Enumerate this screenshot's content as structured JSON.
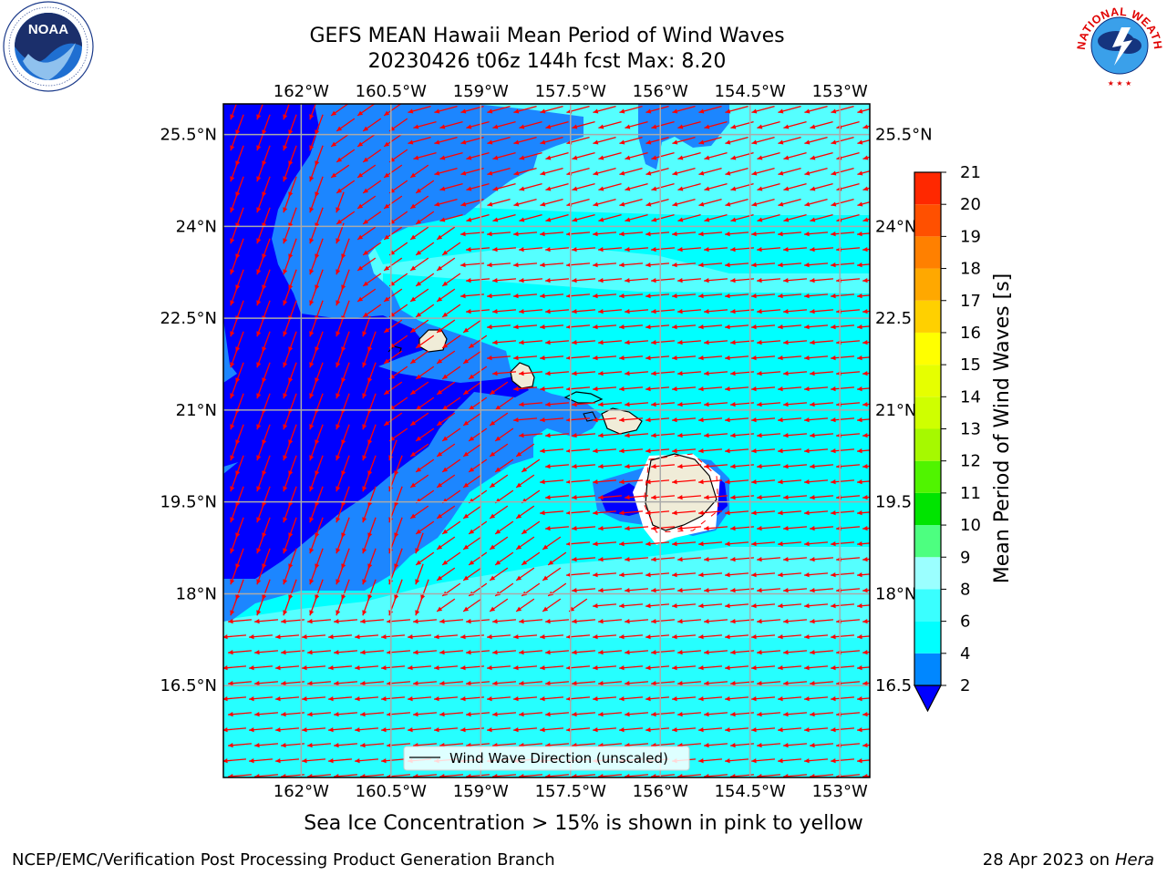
{
  "title": {
    "line1": "GEFS MEAN Hawaii Mean Period of Wind Waves",
    "line2": "20230426 t06z 144h fcst   Max: 8.20"
  },
  "subtitle": "Sea Ice Concentration > 15% is shown in pink to yellow",
  "footer": {
    "credit": "NCEP/EMC/Verification Post Processing Product Generation Branch",
    "date": "28 Apr 2023 on",
    "machine": "Hera"
  },
  "logos": {
    "noaa": {
      "text": "NOAA",
      "icon": "noaa-logo-icon"
    },
    "nws": {
      "text": "NATIONAL WEATHER SERVICE",
      "icon": "nws-logo-icon"
    }
  },
  "chart_data": {
    "type": "heatmap",
    "title": "GEFS MEAN Hawaii Mean Period of Wind Waves",
    "map_extent": {
      "lon": [
        -163.3,
        -152.5
      ],
      "lat": [
        15.0,
        26.0
      ]
    },
    "lon_ticks": [
      {
        "value": -162.0,
        "label": "162°W"
      },
      {
        "value": -160.5,
        "label": "160.5°W"
      },
      {
        "value": -159.0,
        "label": "159°W"
      },
      {
        "value": -157.5,
        "label": "157.5°W"
      },
      {
        "value": -156.0,
        "label": "156°W"
      },
      {
        "value": -154.5,
        "label": "154.5°W"
      },
      {
        "value": -153.0,
        "label": "153°W"
      }
    ],
    "lat_ticks": [
      {
        "value": 25.5,
        "label": "25.5°N"
      },
      {
        "value": 24.0,
        "label": "24°N"
      },
      {
        "value": 22.5,
        "label": "22.5°N"
      },
      {
        "value": 21.0,
        "label": "21°N"
      },
      {
        "value": 19.5,
        "label": "19.5°N"
      },
      {
        "value": 18.0,
        "label": "18°N"
      },
      {
        "value": 16.5,
        "label": "16.5°N"
      }
    ],
    "right_lat_labels": [
      "25.5°N",
      "24°N",
      "22.5",
      "21°N",
      "19.5",
      "18°N",
      "16.5"
    ],
    "grid": true,
    "max_value": 8.2,
    "legend": {
      "label": "Wind Wave Direction (unscaled)",
      "placement": "bottom-center"
    },
    "colorbar": {
      "label": "Mean Period of Wind Waves [s]",
      "ticks": [
        2,
        4,
        6,
        8,
        9,
        10,
        11,
        12,
        13,
        14,
        15,
        16,
        17,
        18,
        19,
        20,
        21
      ],
      "colors": [
        "#0000ff",
        "#0087ff",
        "#00ffff",
        "#3affff",
        "#9bffff",
        "#4dff80",
        "#00e400",
        "#50f400",
        "#a6f900",
        "#cfff00",
        "#e6ff00",
        "#ffff00",
        "#ffd000",
        "#ffa800",
        "#ff8000",
        "#ff5000",
        "#ff2800",
        "#ff0000"
      ],
      "extend": "min"
    },
    "field_colors": {
      "lt2": "#0000ff",
      "2-4": "#1c86ff",
      "4-6": "#00ffff",
      "6-8": "#55ffff",
      "8-9": "#9fffff"
    },
    "islands": [
      {
        "name": "",
        "center": [
          -159.53,
          22.07
        ]
      },
      {
        "name": "",
        "center": [
          -158.0,
          21.47
        ]
      },
      {
        "name": "",
        "center": [
          -157.0,
          21.12
        ]
      },
      {
        "name": "",
        "center": [
          -156.3,
          20.82
        ]
      },
      {
        "name": "",
        "center": [
          -155.5,
          19.6
        ]
      }
    ],
    "arrow_color": "#ff0000"
  }
}
